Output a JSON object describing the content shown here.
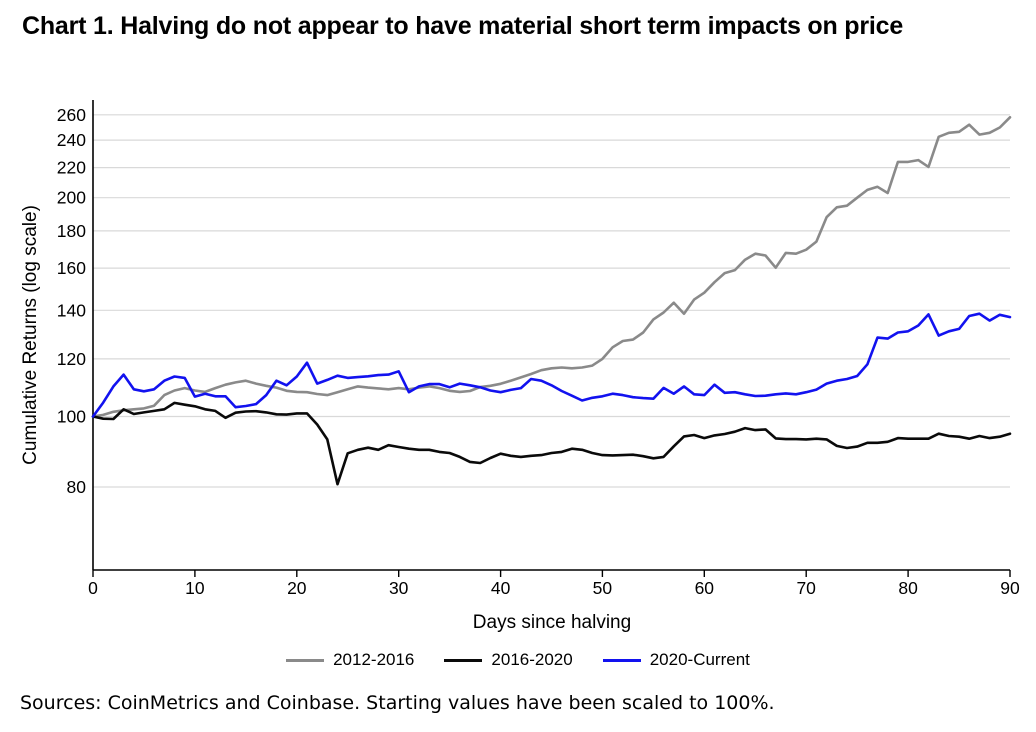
{
  "title": "Chart 1. Halving do not appear to have material short term impacts on price",
  "source_note": "Sources: CoinMetrics and Coinbase. Starting values have been scaled to 100%.",
  "chart_data": {
    "type": "line",
    "title": "Chart 1. Halving do not appear to have material short term impacts on price",
    "xlabel": "Days since halving",
    "ylabel": "Cumulative Returns (log scale)",
    "y_scale": "log10",
    "x_range": [
      0,
      90
    ],
    "y_range": [
      61.5,
      272.5
    ],
    "x_ticks": [
      0,
      10,
      20,
      30,
      40,
      50,
      60,
      70,
      80,
      90
    ],
    "y_ticks": [
      80,
      100,
      120,
      140,
      160,
      180,
      200,
      220,
      240,
      260
    ],
    "grid": "horizontal-only",
    "legend_position": "bottom-center",
    "axis_color": "#000000",
    "grid_color": "#d9d9d9",
    "x": [
      0,
      1,
      2,
      3,
      4,
      5,
      6,
      7,
      8,
      9,
      10,
      11,
      12,
      13,
      14,
      15,
      16,
      17,
      18,
      19,
      20,
      21,
      22,
      23,
      24,
      25,
      26,
      27,
      28,
      29,
      30,
      31,
      32,
      33,
      34,
      35,
      36,
      37,
      38,
      39,
      40,
      41,
      42,
      43,
      44,
      45,
      46,
      47,
      48,
      49,
      50,
      51,
      52,
      53,
      54,
      55,
      56,
      57,
      58,
      59,
      60,
      61,
      62,
      63,
      64,
      65,
      66,
      67,
      68,
      69,
      70,
      71,
      72,
      73,
      74,
      75,
      76,
      77,
      78,
      79,
      80,
      81,
      82,
      83,
      84,
      85,
      86,
      87,
      88,
      89,
      90
    ],
    "series": [
      {
        "name": "2012-2016",
        "color": "#8a8a8a",
        "values": [
          100,
          100.5,
          101.5,
          102,
          102.3,
          102.6,
          103.5,
          107,
          108.6,
          109.4,
          108.6,
          108.1,
          109.4,
          110.6,
          111.4,
          112,
          111,
          110.2,
          109.6,
          108.5,
          108.1,
          108,
          107.4,
          107,
          108,
          109,
          110,
          109.6,
          109.3,
          109,
          109.4,
          109,
          109.6,
          110,
          109.4,
          108.5,
          108.1,
          108.4,
          109.8,
          110.2,
          110.9,
          112,
          113.2,
          114.4,
          115.8,
          116.5,
          116.8,
          116.5,
          116.8,
          117.5,
          120,
          124.5,
          127,
          127.6,
          130.5,
          136,
          139,
          143.4,
          138.5,
          144.8,
          148,
          153,
          157.5,
          159,
          164.3,
          167.5,
          166.5,
          160.2,
          167.9,
          167.5,
          169.6,
          174,
          188,
          194,
          195,
          200,
          205,
          207,
          203,
          224,
          224,
          225.3,
          220.5,
          242.5,
          245.6,
          246.4,
          252,
          244.2,
          245.6,
          249.8,
          258
        ]
      },
      {
        "name": "2016-2020",
        "color": "#0a0a0a",
        "values": [
          100,
          99.3,
          99.2,
          102.3,
          100.8,
          101.3,
          101.8,
          102.3,
          104.4,
          103.8,
          103.3,
          102.3,
          101.8,
          99.6,
          101.2,
          101.6,
          101.7,
          101.3,
          100.7,
          100.6,
          101,
          101,
          97.5,
          93,
          80.7,
          89,
          90,
          90.6,
          90,
          91.3,
          90.8,
          90.3,
          90,
          90,
          89.4,
          89.1,
          88,
          86.6,
          86.3,
          87.7,
          88.9,
          88.3,
          88,
          88.3,
          88.5,
          89.1,
          89.4,
          90.3,
          90,
          89.1,
          88.5,
          88.4,
          88.5,
          88.6,
          88.2,
          87.6,
          88,
          91,
          93.9,
          94.3,
          93.4,
          94.2,
          94.6,
          95.3,
          96.4,
          95.8,
          96,
          93.3,
          93.1,
          93.1,
          93,
          93.2,
          93,
          91.1,
          90.5,
          90.9,
          92,
          92,
          92.3,
          93.4,
          93.2,
          93.2,
          93.2,
          94.7,
          94,
          93.8,
          93.2,
          94,
          93.4,
          93.8,
          94.7
        ]
      },
      {
        "name": "2020-Current",
        "color": "#1212ef",
        "values": [
          100,
          104.5,
          110,
          114.2,
          109,
          108.3,
          109,
          112,
          113.5,
          113,
          106.5,
          107.5,
          106.6,
          106.6,
          103,
          103.4,
          104,
          107,
          112,
          110.4,
          113.5,
          118.6,
          111,
          112.3,
          113.8,
          113,
          113.3,
          113.6,
          114,
          114.2,
          115.4,
          108,
          110,
          110.8,
          110.8,
          109.7,
          111,
          110.4,
          109.7,
          108.6,
          108,
          108.8,
          109.4,
          112.6,
          112,
          110.4,
          108.4,
          106.8,
          105.2,
          106.1,
          106.6,
          107.5,
          107,
          106.3,
          106,
          105.8,
          109.5,
          107.5,
          110,
          107.3,
          107,
          110.6,
          107.8,
          108,
          107.3,
          106.7,
          106.8,
          107.3,
          107.6,
          107.3,
          108,
          108.9,
          111,
          112,
          112.6,
          113.7,
          118,
          128.4,
          128,
          130.5,
          131,
          133.4,
          138.2,
          129.2,
          131,
          132,
          137.5,
          138.5,
          135.5,
          138,
          137
        ]
      }
    ]
  }
}
